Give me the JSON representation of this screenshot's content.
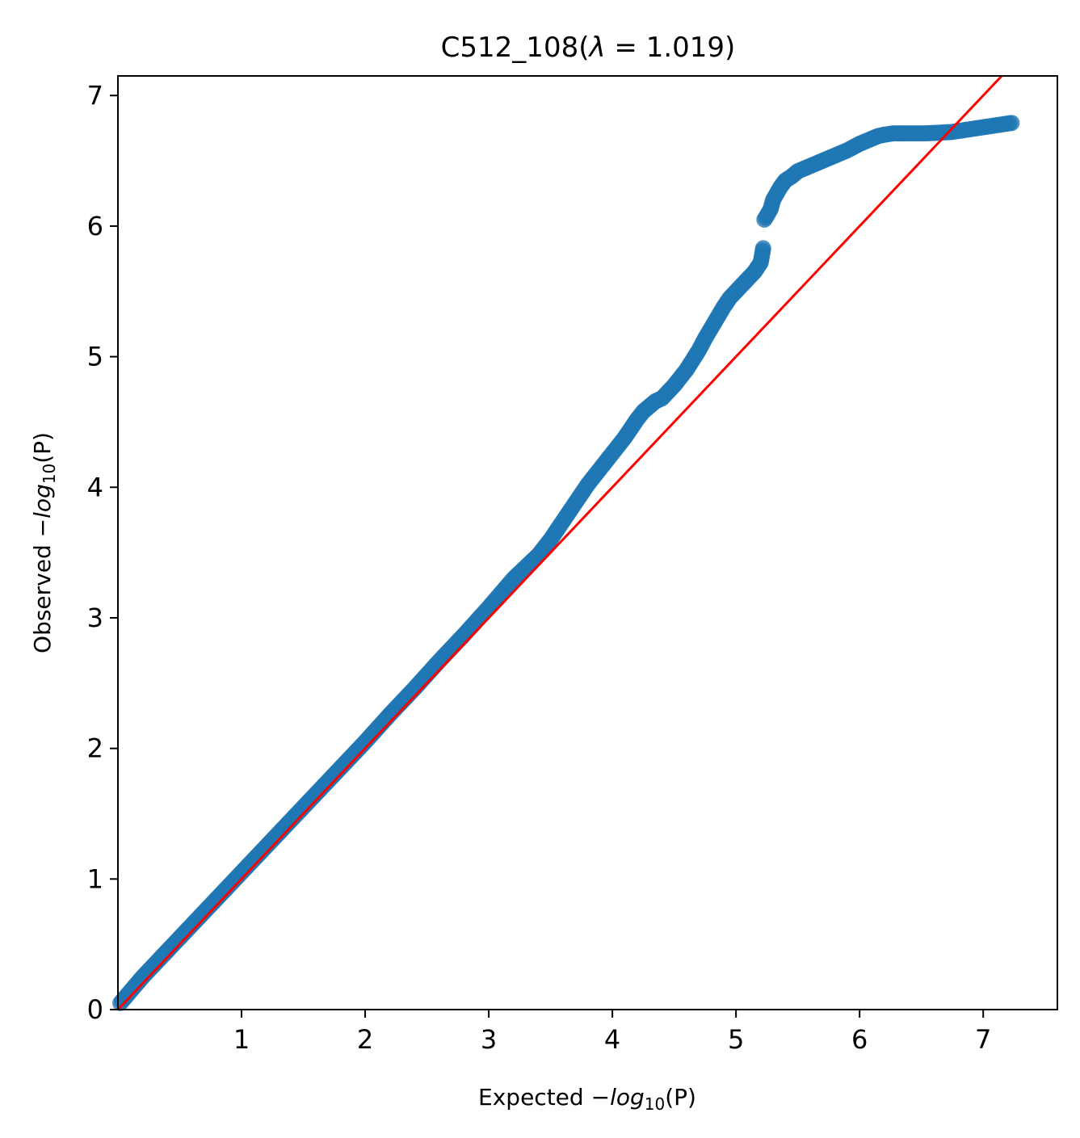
{
  "chart_data": {
    "type": "scatter",
    "title": {
      "prefix": "C512_108(",
      "lambda_symbol": "λ",
      "equals": " = ",
      "lambda_value": "1.019",
      "suffix": ")"
    },
    "xlabel": {
      "prefix": "Expected ",
      "minus": "−",
      "func": "log",
      "sub": "10",
      "arg": "(P)"
    },
    "ylabel": {
      "prefix": "Observed ",
      "minus": "−",
      "func": "log",
      "sub": "10",
      "arg": "(P)"
    },
    "xlim": [
      0,
      7.6
    ],
    "ylim": [
      0,
      7.15
    ],
    "xticks": [
      1,
      2,
      3,
      4,
      5,
      6,
      7
    ],
    "yticks": [
      0,
      1,
      2,
      3,
      4,
      5,
      6,
      7
    ],
    "grid": false,
    "legend": "none",
    "reference_line": {
      "type": "y=x",
      "color": "#ff0000"
    },
    "point_color": "#1f77b4",
    "series": [
      {
        "x": [
          0.02,
          0.2,
          0.4,
          0.6,
          0.8,
          1.0,
          1.2,
          1.4,
          1.6,
          1.8,
          2.0,
          2.2,
          2.4,
          2.6,
          2.8,
          3.0,
          3.2,
          3.4,
          3.5,
          3.6,
          3.7,
          3.8,
          3.9,
          4.0,
          4.1,
          4.15,
          4.2,
          4.25,
          4.3,
          4.35,
          4.4,
          4.5,
          4.6,
          4.7,
          4.75,
          4.8,
          4.85,
          4.9,
          4.95,
          5.0,
          5.05,
          5.1,
          5.15,
          5.2,
          5.22,
          5.23,
          5.25,
          5.28,
          5.3,
          5.33,
          5.36,
          5.4,
          5.45,
          5.5,
          5.6,
          5.7,
          5.8,
          5.9,
          6.0,
          6.05,
          6.1,
          6.15,
          6.2,
          6.27,
          6.37,
          6.52,
          6.74,
          7.23
        ],
        "y": [
          0.05,
          0.25,
          0.45,
          0.65,
          0.85,
          1.05,
          1.25,
          1.45,
          1.65,
          1.85,
          2.05,
          2.26,
          2.46,
          2.67,
          2.87,
          3.08,
          3.3,
          3.48,
          3.6,
          3.74,
          3.88,
          4.02,
          4.14,
          4.26,
          4.38,
          4.45,
          4.52,
          4.58,
          4.62,
          4.66,
          4.68,
          4.78,
          4.9,
          5.05,
          5.14,
          5.22,
          5.3,
          5.38,
          5.45,
          5.5,
          5.55,
          5.6,
          5.65,
          5.72,
          5.83,
          6.05,
          6.08,
          6.13,
          6.2,
          6.25,
          6.3,
          6.35,
          6.38,
          6.42,
          6.46,
          6.5,
          6.54,
          6.58,
          6.63,
          6.65,
          6.67,
          6.69,
          6.7,
          6.71,
          6.71,
          6.71,
          6.72,
          6.79
        ]
      }
    ]
  }
}
